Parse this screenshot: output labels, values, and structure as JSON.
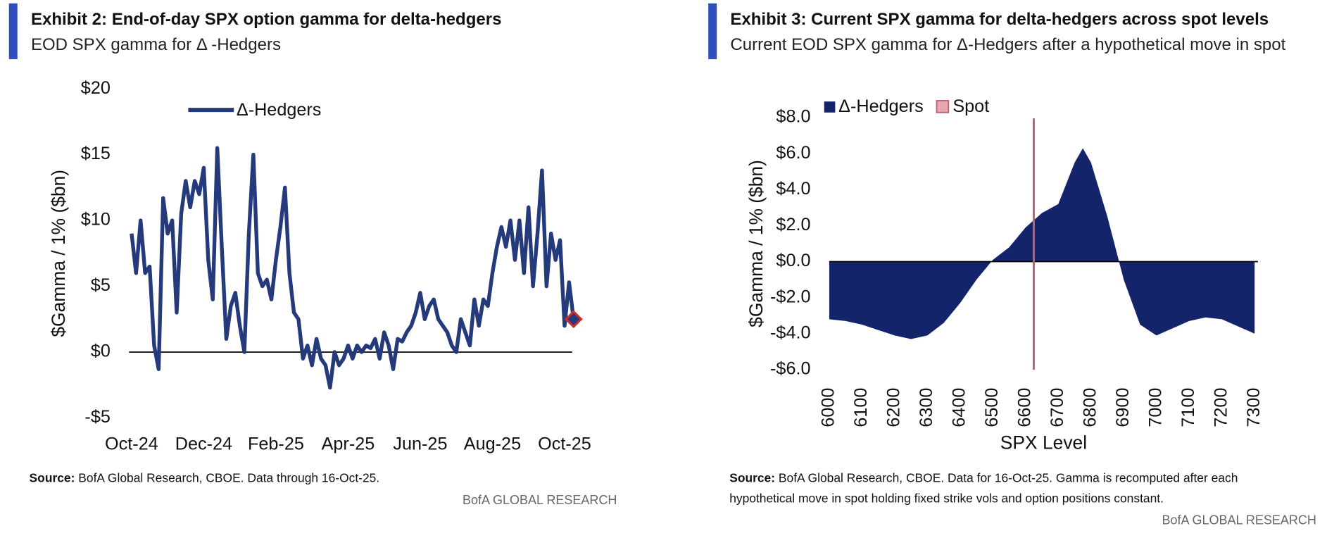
{
  "chart_data": [
    {
      "type": "line",
      "title": "Exhibit 2: End-of-day SPX option gamma for delta-hedgers",
      "subtitle": "EOD SPX gamma for  Δ -Hedgers",
      "y_label": "$Gamma / 1% ($bn)",
      "categories": [
        "Oct-24",
        null,
        null,
        null,
        null,
        null,
        null,
        null,
        null,
        null,
        null,
        null,
        null,
        null,
        null,
        null,
        "Dec-24",
        null,
        null,
        null,
        null,
        null,
        null,
        null,
        null,
        null,
        null,
        null,
        null,
        null,
        null,
        null,
        "Feb-25",
        null,
        null,
        null,
        null,
        null,
        null,
        null,
        null,
        null,
        null,
        null,
        null,
        null,
        null,
        null,
        "Apr-25",
        null,
        null,
        null,
        null,
        null,
        null,
        null,
        null,
        null,
        null,
        null,
        null,
        null,
        null,
        null,
        "Jun-25",
        null,
        null,
        null,
        null,
        null,
        null,
        null,
        null,
        null,
        null,
        null,
        null,
        null,
        null,
        null,
        "Aug-25",
        null,
        null,
        null,
        null,
        null,
        null,
        null,
        null,
        null,
        null,
        null,
        null,
        null,
        null,
        null,
        "Oct-25",
        null,
        null
      ],
      "series": [
        {
          "name": "Δ-Hedgers",
          "color": "#253a7a",
          "values": [
            9,
            6,
            10,
            6,
            6.5,
            0.5,
            -1.3,
            11.7,
            9,
            10,
            3,
            10.5,
            13,
            11,
            13,
            12,
            14,
            7,
            4,
            15.5,
            8,
            1,
            3.5,
            4.5,
            2,
            0,
            9,
            15,
            6,
            5,
            5.5,
            4,
            7,
            9.5,
            12.5,
            6,
            3,
            2.5,
            -0.5,
            0.5,
            -1,
            1,
            -0.5,
            -1,
            -2.7,
            0,
            -1,
            -0.5,
            0.5,
            -0.5,
            0.5,
            0,
            0.5,
            0.3,
            1,
            -0.5,
            1.5,
            0.5,
            -1.3,
            1,
            0.8,
            1.5,
            2,
            3,
            4.5,
            2.5,
            3.5,
            4,
            2.5,
            2,
            1.5,
            0.5,
            0,
            2.5,
            1.5,
            0.5,
            4,
            2,
            4,
            3.5,
            6,
            8,
            9.5,
            8,
            10,
            7,
            10,
            6,
            11,
            5,
            9,
            13.8,
            5,
            9,
            7,
            8.5,
            2,
            5.3,
            2.5
          ]
        }
      ],
      "last_marker_color": "#d62b2b",
      "ylim": [
        -5,
        20
      ],
      "yticks": [
        {
          "value": 20,
          "label": "$20"
        },
        {
          "value": 15,
          "label": "$15"
        },
        {
          "value": 10,
          "label": "$10"
        },
        {
          "value": 5,
          "label": "$5"
        },
        {
          "value": 0,
          "label": "$0"
        },
        {
          "value": -5,
          "label": "-$5"
        }
      ],
      "source_label": "Source:",
      "source": "BofA Global Research, CBOE. Data through 16-Oct-25.",
      "brand": "BofA GLOBAL RESEARCH"
    },
    {
      "type": "area",
      "title": "Exhibit 3: Current SPX gamma for delta-hedgers across spot levels",
      "subtitle": "Current EOD SPX gamma for Δ-Hedgers after a hypothetical move in spot",
      "y_label": "$Gamma / 1% ($bn)",
      "x_label": "SPX Level",
      "x": [
        6000,
        6050,
        6100,
        6150,
        6200,
        6250,
        6300,
        6350,
        6400,
        6450,
        6500,
        6550,
        6600,
        6650,
        6700,
        6750,
        6775,
        6800,
        6850,
        6900,
        6950,
        7000,
        7050,
        7100,
        7150,
        7200,
        7250,
        7300
      ],
      "series": [
        {
          "name": "Δ-Hedgers",
          "color": "#14246b",
          "values": [
            -3.2,
            -3.3,
            -3.5,
            -3.8,
            -4.1,
            -4.3,
            -4.1,
            -3.4,
            -2.3,
            -1.0,
            0.1,
            0.8,
            1.9,
            2.7,
            3.2,
            5.5,
            6.3,
            5.5,
            2.5,
            -1.0,
            -3.5,
            -4.1,
            -3.7,
            -3.3,
            -3.1,
            -3.2,
            -3.6,
            -4.0
          ]
        }
      ],
      "spot": {
        "name": "Spot",
        "value": 6625,
        "color": "#c0606f"
      },
      "xlim": [
        6000,
        7300
      ],
      "xticks": [
        6000,
        6100,
        6200,
        6300,
        6400,
        6500,
        6600,
        6700,
        6800,
        6900,
        7000,
        7100,
        7200,
        7300
      ],
      "ylim": [
        -6,
        8
      ],
      "yticks": [
        {
          "value": 8,
          "label": "$8.0"
        },
        {
          "value": 6,
          "label": "$6.0"
        },
        {
          "value": 4,
          "label": "$4.0"
        },
        {
          "value": 2,
          "label": "$2.0"
        },
        {
          "value": 0,
          "label": "$0.0"
        },
        {
          "value": -2,
          "label": "-$2.0"
        },
        {
          "value": -4,
          "label": "-$4.0"
        },
        {
          "value": -6,
          "label": "-$6.0"
        }
      ],
      "source_label": "Source:",
      "source": "BofA Global Research, CBOE. Data for 16-Oct-25. Gamma is recomputed after each hypothetical move in spot holding fixed strike vols and option positions constant.",
      "brand": "BofA GLOBAL RESEARCH"
    }
  ]
}
